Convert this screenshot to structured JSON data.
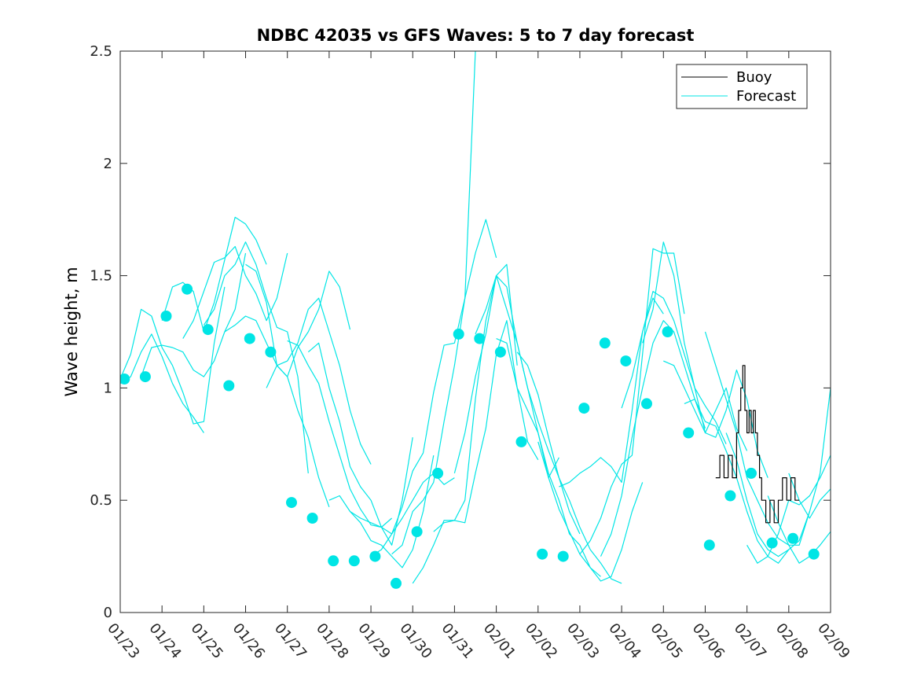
{
  "chart_data": {
    "type": "line",
    "title": "NDBC 42035 vs GFS Waves: 5 to 7 day forecast",
    "xlabel": "",
    "ylabel": "Wave height, m",
    "xlim": [
      0,
      17
    ],
    "ylim": [
      0,
      2.5
    ],
    "x_tick_labels": [
      "01/23",
      "01/24",
      "01/25",
      "01/26",
      "01/27",
      "01/28",
      "01/29",
      "01/30",
      "01/31",
      "02/01",
      "02/02",
      "02/03",
      "02/04",
      "02/05",
      "02/06",
      "02/07",
      "02/08",
      "02/09"
    ],
    "y_ticks": [
      0,
      0.5,
      1,
      1.5,
      2,
      2.5
    ],
    "y_tick_labels": [
      "0",
      "0.5",
      "1",
      "1.5",
      "2",
      "2.5"
    ],
    "colors": {
      "buoy": "#000000",
      "forecast": "#00e5e5",
      "axes": "#262626"
    },
    "legend": {
      "position": "top-right",
      "entries": [
        {
          "label": "Buoy",
          "color": "#000000"
        },
        {
          "label": "Forecast",
          "color": "#00e5e5"
        }
      ]
    },
    "series": [
      {
        "name": "Buoy",
        "color": "#000000",
        "step": true,
        "x": [
          14.25,
          14.35,
          14.45,
          14.55,
          14.65,
          14.75,
          14.8,
          14.85,
          14.9,
          14.95,
          15.0,
          15.05,
          15.1,
          15.15,
          15.2,
          15.25,
          15.3,
          15.35,
          15.45,
          15.55,
          15.65,
          15.75,
          15.85,
          15.95,
          16.05,
          16.15,
          16.25
        ],
        "values": [
          0.6,
          0.7,
          0.6,
          0.7,
          0.6,
          0.8,
          0.9,
          1.0,
          1.1,
          0.9,
          0.8,
          0.9,
          0.8,
          0.9,
          0.8,
          0.7,
          0.6,
          0.5,
          0.4,
          0.5,
          0.4,
          0.5,
          0.6,
          0.5,
          0.6,
          0.5,
          0.5
        ]
      },
      {
        "name": "Forecast",
        "color": "#00e5e5",
        "type": "scatter",
        "x": [
          0.1,
          0.6,
          1.1,
          1.6,
          2.1,
          2.6,
          3.1,
          3.6,
          4.1,
          4.6,
          5.1,
          5.6,
          6.1,
          6.6,
          7.1,
          7.6,
          8.1,
          8.6,
          9.1,
          9.6,
          10.1,
          10.6,
          11.1,
          11.6,
          12.1,
          12.6,
          13.1,
          13.6,
          14.1,
          14.6,
          15.1,
          15.6,
          16.1,
          16.6
        ],
        "values": [
          1.04,
          1.05,
          1.32,
          1.44,
          1.26,
          1.01,
          1.22,
          1.16,
          0.49,
          0.42,
          0.23,
          0.23,
          0.25,
          0.13,
          0.36,
          0.62,
          1.24,
          1.22,
          1.16,
          0.76,
          0.26,
          0.25,
          0.91,
          1.2,
          1.12,
          0.93,
          1.25,
          0.8,
          0.3,
          0.52,
          0.62,
          0.31,
          0.33,
          0.26
        ]
      },
      {
        "name": "Forecast",
        "color": "#00e5e5",
        "x": [
          0.0,
          0.25,
          0.5,
          0.75,
          1.0,
          1.25,
          1.5,
          1.75,
          2.0
        ],
        "values": [
          1.02,
          1.05,
          1.16,
          1.24,
          1.14,
          1.02,
          0.93,
          0.87,
          0.8
        ]
      },
      {
        "name": "Forecast",
        "color": "#00e5e5",
        "x": [
          0.0,
          0.25,
          0.5,
          0.75,
          1.0,
          1.25,
          1.5,
          1.75,
          2.0,
          2.25,
          2.5
        ],
        "values": [
          1.04,
          1.15,
          1.35,
          1.32,
          1.18,
          1.1,
          0.98,
          0.84,
          0.85,
          1.2,
          1.45
        ]
      },
      {
        "name": "Forecast",
        "color": "#00e5e5",
        "x": [
          0.5,
          0.75,
          1.0,
          1.25,
          1.5,
          1.75,
          2.0,
          2.25,
          2.5,
          2.75,
          3.0
        ],
        "values": [
          1.05,
          1.18,
          1.19,
          1.18,
          1.16,
          1.08,
          1.05,
          1.12,
          1.25,
          1.35,
          1.6
        ]
      },
      {
        "name": "Forecast",
        "color": "#00e5e5",
        "x": [
          1.0,
          1.25,
          1.5,
          1.75,
          2.0,
          2.25,
          2.5,
          2.75,
          3.0,
          3.25,
          3.5
        ],
        "values": [
          1.3,
          1.45,
          1.47,
          1.43,
          1.25,
          1.38,
          1.57,
          1.76,
          1.73,
          1.66,
          1.55
        ]
      },
      {
        "name": "Forecast",
        "color": "#00e5e5",
        "x": [
          1.5,
          1.75,
          2.0,
          2.25,
          2.5,
          2.75,
          3.0,
          3.25,
          3.5,
          3.75,
          4.0
        ],
        "values": [
          1.22,
          1.3,
          1.43,
          1.56,
          1.58,
          1.63,
          1.5,
          1.42,
          1.3,
          1.4,
          1.6
        ]
      },
      {
        "name": "Forecast",
        "color": "#00e5e5",
        "x": [
          2.0,
          2.25,
          2.5,
          2.75,
          3.0,
          3.25,
          3.5,
          3.75,
          4.0,
          4.25,
          4.5
        ],
        "values": [
          1.28,
          1.35,
          1.5,
          1.55,
          1.65,
          1.55,
          1.4,
          1.27,
          1.25,
          1.05,
          0.62
        ]
      },
      {
        "name": "Forecast",
        "color": "#00e5e5",
        "x": [
          2.5,
          2.75,
          3.0,
          3.25,
          3.5,
          3.75,
          4.0,
          4.25,
          4.5,
          4.75,
          5.0
        ],
        "values": [
          1.25,
          1.28,
          1.32,
          1.3,
          1.2,
          1.1,
          1.05,
          0.9,
          0.78,
          0.6,
          0.47
        ]
      },
      {
        "name": "Forecast",
        "color": "#00e5e5",
        "x": [
          3.0,
          3.25,
          3.5,
          3.75,
          4.0,
          4.25,
          4.5,
          4.75,
          5.0,
          5.25,
          5.5
        ],
        "values": [
          1.55,
          1.52,
          1.38,
          1.1,
          1.05,
          1.18,
          1.25,
          1.35,
          1.52,
          1.45,
          1.26
        ]
      },
      {
        "name": "Forecast",
        "color": "#00e5e5",
        "x": [
          3.5,
          3.75,
          4.0,
          4.25,
          4.5,
          4.75,
          5.0,
          5.25,
          5.5,
          5.75,
          6.0
        ],
        "values": [
          1.0,
          1.1,
          1.12,
          1.2,
          1.35,
          1.4,
          1.25,
          1.1,
          0.9,
          0.75,
          0.66
        ]
      },
      {
        "name": "Forecast",
        "color": "#00e5e5",
        "x": [
          4.0,
          4.25,
          4.5,
          4.75,
          5.0,
          5.25,
          5.5,
          5.75,
          6.0,
          6.25,
          6.5
        ],
        "values": [
          1.21,
          1.19,
          1.1,
          1.02,
          0.85,
          0.7,
          0.55,
          0.46,
          0.39,
          0.38,
          0.42
        ]
      },
      {
        "name": "Forecast",
        "color": "#00e5e5",
        "x": [
          4.5,
          4.75,
          5.0,
          5.25,
          5.5,
          5.75,
          6.0,
          6.25,
          6.5,
          6.75,
          7.0
        ],
        "values": [
          1.16,
          1.2,
          1.0,
          0.85,
          0.65,
          0.56,
          0.5,
          0.38,
          0.3,
          0.5,
          0.78
        ]
      },
      {
        "name": "Forecast",
        "color": "#00e5e5",
        "x": [
          5.0,
          5.25,
          5.5,
          5.75,
          6.0,
          6.25,
          6.5,
          6.75,
          7.0,
          7.25,
          7.5
        ],
        "values": [
          0.5,
          0.52,
          0.45,
          0.4,
          0.32,
          0.3,
          0.25,
          0.2,
          0.28,
          0.45,
          0.7
        ]
      },
      {
        "name": "Forecast",
        "color": "#00e5e5",
        "x": [
          5.5,
          5.75,
          6.0,
          6.25,
          6.5,
          6.75,
          7.0,
          7.25,
          7.5,
          7.75,
          8.0
        ],
        "values": [
          0.45,
          0.42,
          0.4,
          0.38,
          0.35,
          0.42,
          0.5,
          0.58,
          0.62,
          0.57,
          0.6
        ]
      },
      {
        "name": "Forecast",
        "color": "#00e5e5",
        "x": [
          6.0,
          6.25,
          6.5,
          6.75,
          7.0,
          7.25,
          7.5,
          7.75,
          8.0,
          8.25,
          8.5
        ],
        "values": [
          0.25,
          0.28,
          0.35,
          0.47,
          0.63,
          0.71,
          0.98,
          1.19,
          1.2,
          1.4,
          2.5
        ]
      },
      {
        "name": "Forecast",
        "color": "#00e5e5",
        "x": [
          6.5,
          6.75,
          7.0,
          7.25,
          7.5,
          7.75,
          8.0,
          8.25,
          8.5,
          8.75,
          9.0
        ],
        "values": [
          0.26,
          0.3,
          0.45,
          0.5,
          0.58,
          0.85,
          1.1,
          1.4,
          1.6,
          1.75,
          1.58
        ]
      },
      {
        "name": "Forecast",
        "color": "#00e5e5",
        "x": [
          7.0,
          7.25,
          7.5,
          7.75,
          8.0,
          8.25,
          8.5,
          8.75,
          9.0,
          9.25,
          9.5
        ],
        "values": [
          0.13,
          0.2,
          0.3,
          0.41,
          0.41,
          0.5,
          0.95,
          1.3,
          1.5,
          1.55,
          1.1
        ]
      },
      {
        "name": "Forecast",
        "color": "#00e5e5",
        "x": [
          7.5,
          7.75,
          8.0,
          8.25,
          8.5,
          8.75,
          9.0,
          9.25,
          9.5,
          9.75,
          10.0
        ],
        "values": [
          0.36,
          0.4,
          0.41,
          0.4,
          0.62,
          0.82,
          1.15,
          1.3,
          1.0,
          0.76,
          0.68
        ]
      },
      {
        "name": "Forecast",
        "color": "#00e5e5",
        "x": [
          8.0,
          8.25,
          8.5,
          8.75,
          9.0,
          9.25,
          9.5,
          9.75,
          10.0,
          10.25,
          10.5
        ],
        "values": [
          0.62,
          0.8,
          1.05,
          1.24,
          1.5,
          1.45,
          1.2,
          1.0,
          0.8,
          0.6,
          0.69
        ]
      },
      {
        "name": "Forecast",
        "color": "#00e5e5",
        "x": [
          8.5,
          8.75,
          9.0,
          9.25,
          9.5,
          9.75,
          10.0,
          10.25,
          10.5,
          10.75,
          11.0
        ],
        "values": [
          1.24,
          1.35,
          1.5,
          1.35,
          1.2,
          1.0,
          0.85,
          0.72,
          0.6,
          0.45,
          0.35
        ]
      },
      {
        "name": "Forecast",
        "color": "#00e5e5",
        "x": [
          9.0,
          9.25,
          9.5,
          9.75,
          10.0,
          10.25,
          10.5,
          10.75,
          11.0,
          11.25,
          11.5
        ],
        "values": [
          1.22,
          1.2,
          1.0,
          0.9,
          0.8,
          0.62,
          0.5,
          0.35,
          0.3,
          0.2,
          0.16
        ]
      },
      {
        "name": "Forecast",
        "color": "#00e5e5",
        "x": [
          9.5,
          9.75,
          10.0,
          10.25,
          10.5,
          10.75,
          11.0,
          11.25,
          11.5,
          11.75,
          12.0
        ],
        "values": [
          1.16,
          1.1,
          0.97,
          0.78,
          0.6,
          0.5,
          0.38,
          0.28,
          0.22,
          0.15,
          0.13
        ]
      },
      {
        "name": "Forecast",
        "color": "#00e5e5",
        "x": [
          10.0,
          10.25,
          10.5,
          10.75,
          11.0,
          11.25,
          11.5,
          11.75,
          12.0,
          12.25,
          12.5
        ],
        "values": [
          0.76,
          0.6,
          0.46,
          0.36,
          0.26,
          0.2,
          0.14,
          0.16,
          0.28,
          0.45,
          0.58
        ]
      },
      {
        "name": "Forecast",
        "color": "#00e5e5",
        "x": [
          10.5,
          10.75,
          11.0,
          11.25,
          11.5,
          11.75,
          12.0,
          12.25,
          12.5,
          12.75,
          13.0
        ],
        "values": [
          0.56,
          0.58,
          0.62,
          0.65,
          0.69,
          0.65,
          0.58,
          0.9,
          1.25,
          1.4,
          1.33
        ]
      },
      {
        "name": "Forecast",
        "color": "#00e5e5",
        "x": [
          11.0,
          11.25,
          11.5,
          11.75,
          12.0,
          12.25,
          12.5,
          12.75,
          13.0,
          13.25,
          13.5
        ],
        "values": [
          0.26,
          0.32,
          0.42,
          0.56,
          0.66,
          0.7,
          1.15,
          1.62,
          1.6,
          1.6,
          1.33
        ]
      },
      {
        "name": "Forecast",
        "color": "#00e5e5",
        "x": [
          11.5,
          11.75,
          12.0,
          12.25,
          12.5,
          12.75,
          13.0,
          13.25,
          13.5,
          13.75,
          14.0
        ],
        "values": [
          0.25,
          0.35,
          0.52,
          0.78,
          1.0,
          1.2,
          1.3,
          1.25,
          1.1,
          0.95,
          0.82
        ]
      },
      {
        "name": "Forecast",
        "color": "#00e5e5",
        "x": [
          12.0,
          12.25,
          12.5,
          12.75,
          13.0,
          13.25,
          13.5,
          13.75,
          14.0,
          14.25,
          14.5
        ],
        "values": [
          0.91,
          1.05,
          1.25,
          1.43,
          1.4,
          1.3,
          1.15,
          1.0,
          0.92,
          0.85,
          0.75
        ]
      },
      {
        "name": "Forecast",
        "color": "#00e5e5",
        "x": [
          12.5,
          12.75,
          13.0,
          13.25,
          13.5,
          13.75,
          14.0,
          14.25,
          14.5,
          14.75,
          15.0
        ],
        "values": [
          1.2,
          1.35,
          1.65,
          1.5,
          1.2,
          1.0,
          0.8,
          0.9,
          1.0,
          0.82,
          0.72
        ]
      },
      {
        "name": "Forecast",
        "color": "#00e5e5",
        "x": [
          13.0,
          13.25,
          13.5,
          13.75,
          14.0,
          14.25,
          14.5,
          14.75,
          15.0,
          15.25,
          15.5
        ],
        "values": [
          1.12,
          1.1,
          1.0,
          0.9,
          0.8,
          0.78,
          0.9,
          1.08,
          0.95,
          0.72,
          0.6
        ]
      },
      {
        "name": "Forecast",
        "color": "#00e5e5",
        "x": [
          13.5,
          13.75,
          14.0,
          14.25,
          14.5,
          14.75,
          15.0,
          15.25,
          15.5,
          15.75,
          16.0
        ],
        "values": [
          0.93,
          0.95,
          0.85,
          0.83,
          0.72,
          0.6,
          0.45,
          0.32,
          0.25,
          0.22,
          0.28
        ]
      },
      {
        "name": "Forecast",
        "color": "#00e5e5",
        "x": [
          14.0,
          14.25,
          14.5,
          14.75,
          15.0,
          15.25,
          15.5,
          15.75,
          16.0,
          16.25,
          16.5
        ],
        "values": [
          1.25,
          1.1,
          0.95,
          0.8,
          0.6,
          0.5,
          0.4,
          0.33,
          0.3,
          0.3,
          0.45
        ]
      },
      {
        "name": "Forecast",
        "color": "#00e5e5",
        "x": [
          14.5,
          14.75,
          15.0,
          15.25,
          15.5,
          15.75,
          16.0,
          16.25,
          16.5,
          16.75,
          17.0
        ],
        "values": [
          0.8,
          0.68,
          0.5,
          0.35,
          0.28,
          0.25,
          0.28,
          0.32,
          0.45,
          0.62,
          1.0
        ]
      },
      {
        "name": "Forecast",
        "color": "#00e5e5",
        "x": [
          15.0,
          15.25,
          15.5,
          15.75,
          16.0,
          16.25,
          16.5,
          16.75,
          17.0
        ],
        "values": [
          0.3,
          0.22,
          0.25,
          0.35,
          0.5,
          0.48,
          0.52,
          0.6,
          0.7
        ]
      },
      {
        "name": "Forecast",
        "color": "#00e5e5",
        "x": [
          15.5,
          15.75,
          16.0,
          16.25,
          16.5,
          16.75,
          17.0
        ],
        "values": [
          0.52,
          0.4,
          0.3,
          0.22,
          0.25,
          0.3,
          0.36
        ]
      },
      {
        "name": "Forecast",
        "color": "#00e5e5",
        "x": [
          16.0,
          16.25,
          16.5,
          16.75,
          17.0
        ],
        "values": [
          0.62,
          0.5,
          0.42,
          0.5,
          0.55
        ]
      }
    ]
  }
}
